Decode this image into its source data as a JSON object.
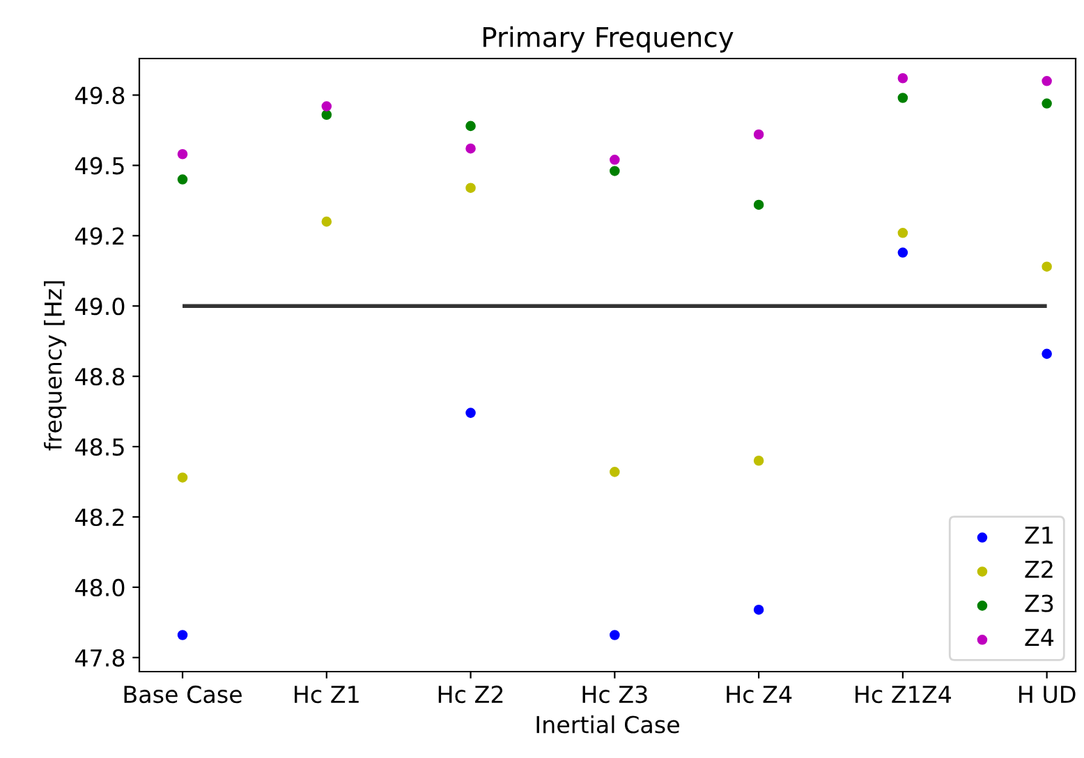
{
  "chart_data": {
    "type": "scatter",
    "title": "Primary Frequency",
    "xlabel": "Inertial Case",
    "ylabel": "frequency [Hz]",
    "categories": [
      "Base Case",
      "Hc Z1",
      "Hc Z2",
      "Hc Z3",
      "Hc Z4",
      "Hc Z1Z4",
      "H UD"
    ],
    "series": [
      {
        "name": "Z1",
        "color": "#0000ff",
        "values": [
          47.83,
          null,
          48.62,
          47.83,
          47.92,
          49.19,
          48.83
        ]
      },
      {
        "name": "Z2",
        "color": "#bfbf00",
        "values": [
          48.39,
          49.3,
          49.42,
          48.41,
          48.45,
          49.26,
          49.14
        ]
      },
      {
        "name": "Z3",
        "color": "#008000",
        "values": [
          49.45,
          49.68,
          49.64,
          49.48,
          49.36,
          49.74,
          49.72
        ]
      },
      {
        "name": "Z4",
        "color": "#bf00bf",
        "values": [
          49.54,
          49.71,
          49.56,
          49.52,
          49.61,
          49.81,
          49.8
        ]
      }
    ],
    "ref_lines": [
      {
        "axis": "y",
        "value": 49.0,
        "color": "#333333"
      }
    ],
    "ylim": [
      47.7,
      49.88
    ],
    "yticks": [
      {
        "value": 47.75,
        "label": "47.8"
      },
      {
        "value": 48.0,
        "label": "48.0"
      },
      {
        "value": 48.25,
        "label": "48.2"
      },
      {
        "value": 48.5,
        "label": "48.5"
      },
      {
        "value": 48.75,
        "label": "48.8"
      },
      {
        "value": 49.0,
        "label": "49.0"
      },
      {
        "value": 49.25,
        "label": "49.2"
      },
      {
        "value": 49.5,
        "label": "49.5"
      },
      {
        "value": 49.75,
        "label": "49.8"
      }
    ],
    "legend": "lower right",
    "grid": false,
    "marker": "circle"
  }
}
